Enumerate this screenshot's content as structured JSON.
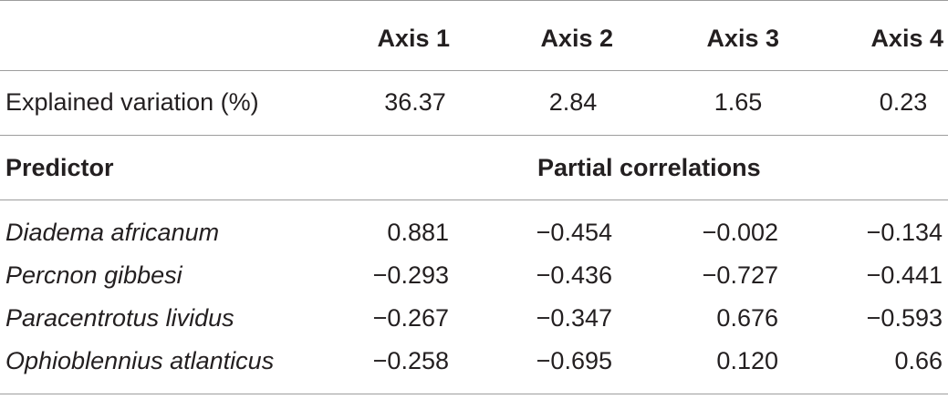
{
  "header": {
    "columns": [
      "",
      "Axis 1",
      "Axis 2",
      "Axis 3",
      "Axis 4"
    ]
  },
  "explained": {
    "label": "Explained variation (%)",
    "values": [
      "36.37",
      "2.84",
      "1.65",
      "0.23"
    ]
  },
  "section": {
    "predictor_label": "Predictor",
    "partial_label": "Partial correlations"
  },
  "rows": [
    {
      "name": "Diadema africanum",
      "values": [
        "0.881",
        "−0.454",
        "−0.002",
        "−0.134"
      ]
    },
    {
      "name": "Percnon gibbesi",
      "values": [
        "−0.293",
        "−0.436",
        "−0.727",
        "−0.441"
      ]
    },
    {
      "name": "Paracentrotus lividus",
      "values": [
        "−0.267",
        "−0.347",
        "0.676",
        "−0.593"
      ]
    },
    {
      "name": "Ophioblennius atlanticus",
      "values": [
        "−0.258",
        "−0.695",
        "0.120",
        "0.66"
      ]
    }
  ]
}
